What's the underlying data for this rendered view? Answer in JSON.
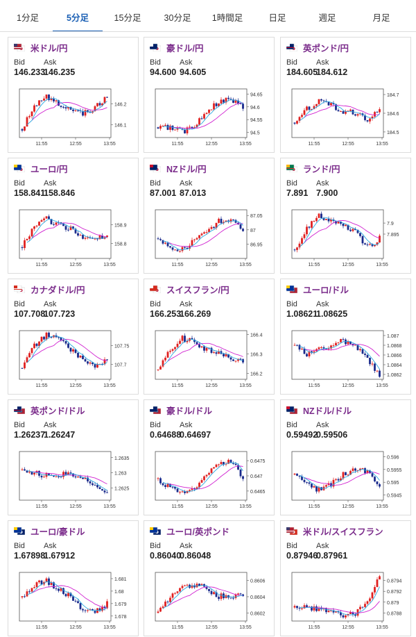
{
  "tabs": [
    {
      "label": "1分足",
      "active": false
    },
    {
      "label": "5分足",
      "active": true
    },
    {
      "label": "15分足",
      "active": false
    },
    {
      "label": "30分足",
      "active": false
    },
    {
      "label": "1時間足",
      "active": false
    },
    {
      "label": "日足",
      "active": false
    },
    {
      "label": "週足",
      "active": false
    },
    {
      "label": "月足",
      "active": false
    }
  ],
  "labels": {
    "bid": "Bid",
    "ask": "Ask"
  },
  "colors": {
    "up": "#e02020",
    "down": "#1a2a8c",
    "ma_short": "#2aa8e0",
    "ma_long": "#d020d0",
    "title": "#7b2c8b"
  },
  "pairs": [
    {
      "name": "米ドル/円",
      "flag": "us-jp",
      "bid": "146.233",
      "ask": "146.235",
      "chart_data": {
        "type": "candlestick",
        "x_ticks": [
          "11:55",
          "12:55",
          "13:55"
        ],
        "y_ticks": [
          "146.2",
          "146.1"
        ],
        "ylim": [
          146.04,
          146.27
        ],
        "trend": [
          146.08,
          146.19,
          146.23,
          146.2,
          146.17,
          146.15,
          146.18,
          146.23
        ]
      }
    },
    {
      "name": "豪ドル/円",
      "flag": "au-jp",
      "bid": "94.600",
      "ask": "94.605",
      "chart_data": {
        "type": "candlestick",
        "x_ticks": [
          "11:55",
          "12:55",
          "13:55"
        ],
        "y_ticks": [
          "94.65",
          "94.6",
          "94.55",
          "94.5"
        ],
        "ylim": [
          94.48,
          94.67
        ],
        "trend": [
          94.52,
          94.52,
          94.5,
          94.53,
          94.58,
          94.62,
          94.63,
          94.6
        ]
      }
    },
    {
      "name": "英ポンド/円",
      "flag": "uk-jp",
      "bid": "184.605",
      "ask": "184.612",
      "chart_data": {
        "type": "candlestick",
        "x_ticks": [
          "11:55",
          "12:55",
          "13:55"
        ],
        "y_ticks": [
          "184.7",
          "184.6",
          "184.5"
        ],
        "ylim": [
          184.47,
          184.73
        ],
        "trend": [
          184.55,
          184.62,
          184.66,
          184.64,
          184.61,
          184.6,
          184.57,
          184.61
        ]
      }
    },
    {
      "name": "ユーロ/円",
      "flag": "eu-jp",
      "bid": "158.841",
      "ask": "158.846",
      "chart_data": {
        "type": "candlestick",
        "x_ticks": [
          "11:55",
          "12:55",
          "13:55"
        ],
        "y_ticks": [
          "158.9",
          "158.8"
        ],
        "ylim": [
          158.72,
          158.98
        ],
        "trend": [
          158.78,
          158.9,
          158.93,
          158.9,
          158.88,
          158.84,
          158.82,
          158.84
        ]
      }
    },
    {
      "name": "NZドル/円",
      "flag": "nz-jp",
      "bid": "87.001",
      "ask": "87.013",
      "chart_data": {
        "type": "candlestick",
        "x_ticks": [
          "11:55",
          "12:55",
          "13:55"
        ],
        "y_ticks": [
          "87.05",
          "87",
          "86.95"
        ],
        "ylim": [
          86.9,
          87.07
        ],
        "trend": [
          86.97,
          86.94,
          86.93,
          86.96,
          86.99,
          87.03,
          87.04,
          87.0
        ]
      }
    },
    {
      "name": "ランド/円",
      "flag": "za-jp",
      "bid": "7.891",
      "ask": "7.900",
      "chart_data": {
        "type": "candlestick",
        "x_ticks": [
          "11:55",
          "12:55",
          "13:55"
        ],
        "y_ticks": [
          "7.9",
          "7.895"
        ],
        "ylim": [
          7.884,
          7.906
        ],
        "trend": [
          7.888,
          7.898,
          7.903,
          7.901,
          7.899,
          7.896,
          7.889,
          7.893
        ]
      }
    },
    {
      "name": "カナダドル/円",
      "flag": "ca-jp",
      "bid": "107.708",
      "ask": "107.723",
      "chart_data": {
        "type": "candlestick",
        "x_ticks": [
          "11:55",
          "12:55",
          "13:55"
        ],
        "y_ticks": [
          "107.75",
          "107.7"
        ],
        "ylim": [
          107.66,
          107.79
        ],
        "trend": [
          107.69,
          107.75,
          107.78,
          107.77,
          107.74,
          107.71,
          107.69,
          107.71
        ]
      }
    },
    {
      "name": "スイスフラン/円",
      "flag": "ch-jp",
      "bid": "166.253",
      "ask": "166.269",
      "chart_data": {
        "type": "candlestick",
        "x_ticks": [
          "11:55",
          "12:55",
          "13:55"
        ],
        "y_ticks": [
          "166.4",
          "166.3",
          "166.2"
        ],
        "ylim": [
          166.17,
          166.42
        ],
        "trend": [
          166.22,
          166.33,
          166.38,
          166.36,
          166.32,
          166.31,
          166.28,
          166.26
        ]
      }
    },
    {
      "name": "ユーロ/ドル",
      "flag": "eu-us",
      "bid": "1.08621",
      "ask": "1.08625",
      "chart_data": {
        "type": "candlestick",
        "x_ticks": [
          "11:55",
          "12:55",
          "13:55"
        ],
        "y_ticks": [
          "1.087",
          "1.0868",
          "1.0866",
          "1.0864",
          "1.0862"
        ],
        "ylim": [
          1.0861,
          1.0871
        ],
        "trend": [
          1.0868,
          1.0866,
          1.0867,
          1.0868,
          1.0869,
          1.0868,
          1.0865,
          1.0862
        ]
      }
    },
    {
      "name": "英ポンド/ドル",
      "flag": "uk-us",
      "bid": "1.26237",
      "ask": "1.26247",
      "chart_data": {
        "type": "candlestick",
        "x_ticks": [
          "11:55",
          "12:55",
          "13:55"
        ],
        "y_ticks": [
          "1.2635",
          "1.263",
          "1.2625"
        ],
        "ylim": [
          1.2621,
          1.2637
        ],
        "trend": [
          1.2631,
          1.263,
          1.2629,
          1.2629,
          1.263,
          1.2628,
          1.2626,
          1.2623
        ]
      }
    },
    {
      "name": "豪ドル/ドル",
      "flag": "au-us",
      "bid": "0.64688",
      "ask": "0.64697",
      "chart_data": {
        "type": "candlestick",
        "x_ticks": [
          "11:55",
          "12:55",
          "13:55"
        ],
        "y_ticks": [
          "0.6475",
          "0.647",
          "0.6465"
        ],
        "ylim": [
          0.6462,
          0.6478
        ],
        "trend": [
          0.6469,
          0.6466,
          0.6464,
          0.6466,
          0.6471,
          0.6474,
          0.6475,
          0.6469
        ]
      }
    },
    {
      "name": "NZドル/ドル",
      "flag": "nz-us",
      "bid": "0.59492",
      "ask": "0.59506",
      "chart_data": {
        "type": "candlestick",
        "x_ticks": [
          "11:55",
          "12:55",
          "13:55"
        ],
        "y_ticks": [
          "0.596",
          "0.5955",
          "0.595",
          "0.5945"
        ],
        "ylim": [
          0.5943,
          0.5962
        ],
        "trend": [
          0.5953,
          0.5949,
          0.5947,
          0.5949,
          0.5953,
          0.5955,
          0.5954,
          0.5949
        ]
      }
    },
    {
      "name": "ユーロ/豪ドル",
      "flag": "eu-au",
      "bid": "1.67898",
      "ask": "1.67912",
      "chart_data": {
        "type": "candlestick",
        "x_ticks": [
          "11:55",
          "12:55",
          "13:55"
        ],
        "y_ticks": [
          "1.681",
          "1.68",
          "1.679",
          "1.678"
        ],
        "ylim": [
          1.6776,
          1.6815
        ],
        "trend": [
          1.6795,
          1.6805,
          1.6808,
          1.6802,
          1.6795,
          1.6786,
          1.6783,
          1.679
        ]
      }
    },
    {
      "name": "ユーロ/英ポンド",
      "flag": "eu-uk",
      "bid": "0.86040",
      "ask": "0.86048",
      "chart_data": {
        "type": "candlestick",
        "x_ticks": [
          "11:55",
          "12:55",
          "13:55"
        ],
        "y_ticks": [
          "0.8606",
          "0.8604",
          "0.8602"
        ],
        "ylim": [
          0.8601,
          0.8607
        ],
        "trend": [
          0.8602,
          0.8604,
          0.8605,
          0.86055,
          0.8605,
          0.8604,
          0.86042,
          0.8604
        ]
      }
    },
    {
      "name": "米ドル/スイスフラン",
      "flag": "us-ch",
      "bid": "0.87946",
      "ask": "0.87961",
      "chart_data": {
        "type": "candlestick",
        "x_ticks": [
          "11:55",
          "12:55",
          "13:55"
        ],
        "y_ticks": [
          "0.8794",
          "0.8792",
          "0.879",
          "0.8788"
        ],
        "ylim": [
          0.87865,
          0.87955
        ],
        "trend": [
          0.8789,
          0.8789,
          0.87885,
          0.8788,
          0.87875,
          0.8788,
          0.879,
          0.8795
        ]
      }
    }
  ]
}
